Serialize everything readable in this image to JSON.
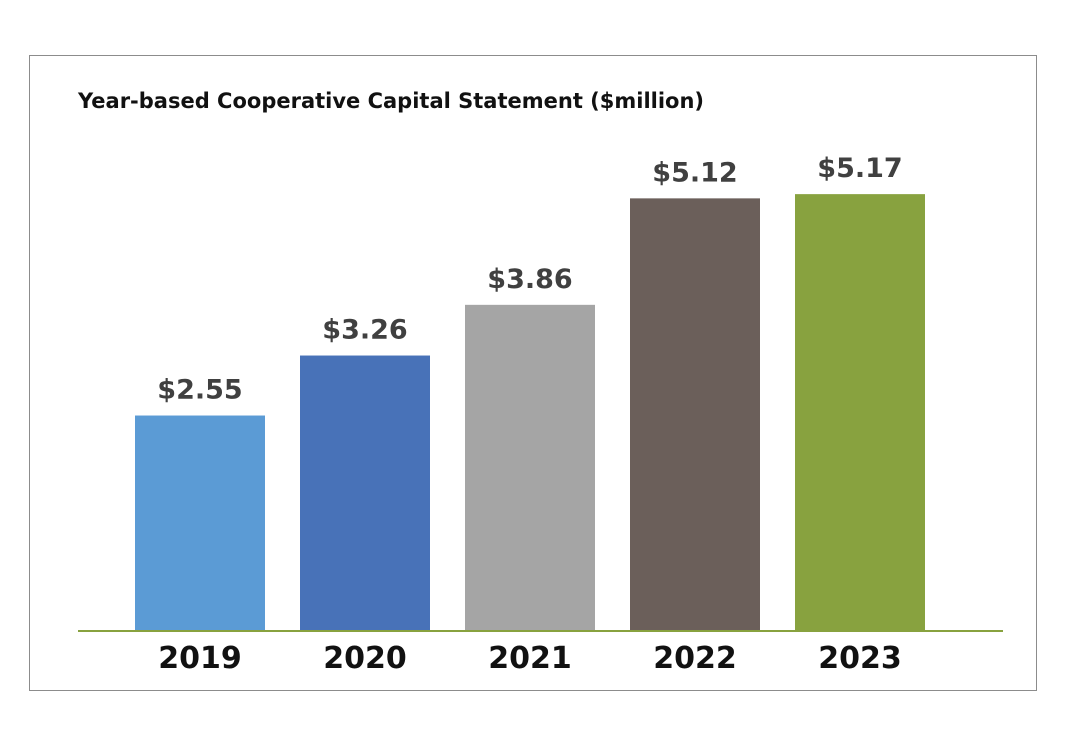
{
  "chart_data": {
    "type": "bar",
    "title": "Year-based Cooperative Capital Statement ($million)",
    "categories": [
      "2019",
      "2020",
      "2021",
      "2022",
      "2023"
    ],
    "values": [
      2.55,
      3.26,
      3.86,
      5.12,
      5.17
    ],
    "data_labels": [
      "$2.55",
      "$3.26",
      "$3.86",
      "$5.12",
      "$5.17"
    ],
    "colors": [
      "#5b9bd5",
      "#4872b8",
      "#a5a5a5",
      "#6b5f5a",
      "#88a23f"
    ],
    "axis_color": "#88a23f",
    "frame_color": "#8c8c8c",
    "xlabel": "",
    "ylabel": "",
    "ylim": [
      0,
      5.5
    ],
    "grid": false,
    "legend": "none"
  }
}
